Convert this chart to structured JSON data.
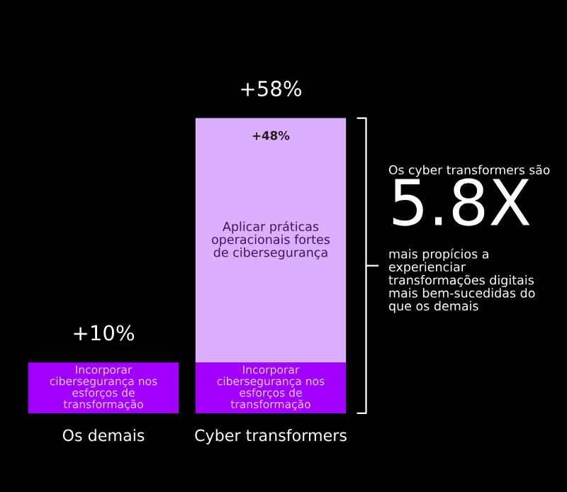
{
  "chart_data": {
    "type": "bar",
    "stacked": true,
    "categories": [
      "Os demais",
      "Cyber transformers"
    ],
    "series": [
      {
        "color": "#a100ff",
        "values": [
          10,
          10
        ]
      },
      {
        "color": "#dcaeff",
        "values": [
          null,
          48
        ],
        "value_labels": [
          null,
          "+48%"
        ]
      }
    ],
    "totals": [
      "+10%",
      "+58%"
    ],
    "annotations": [
      "Incorporar\ncibersegurança nos\nesforços de\ntransformação",
      "Incorporar\ncibersegurança nos\nesforços de\ntransformação",
      "Aplicar práticas\noperacionais fortes\nde cibersegurança",
      "Os cyber transformers são",
      "5.8X",
      "mais propícios a\nexperienciar\ntransformações digitais\nmais bem-sucedidas do\nque os demais"
    ],
    "grid": false,
    "legend": false
  }
}
